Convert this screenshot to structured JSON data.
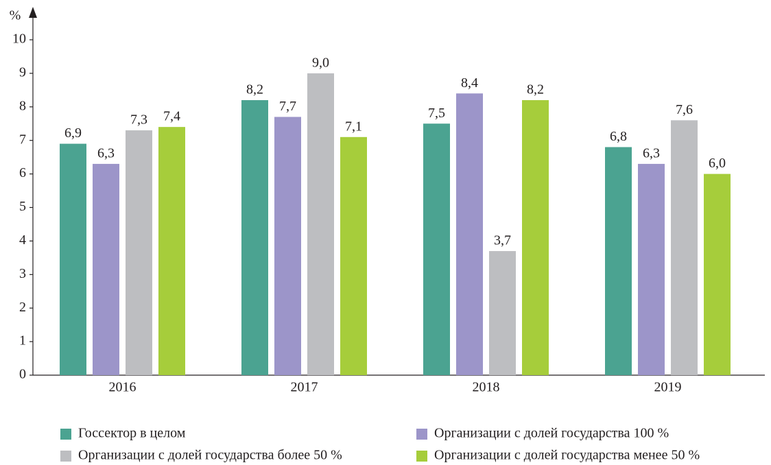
{
  "chart_data": {
    "type": "bar",
    "y_label": "%",
    "categories": [
      "2016",
      "2017",
      "2018",
      "2019"
    ],
    "series": [
      {
        "name": "Госсектор в целом",
        "color": "#4ba391",
        "values": [
          6.9,
          8.2,
          7.5,
          6.8
        ],
        "value_labels": [
          "6,9",
          "8,2",
          "7,5",
          "6,8"
        ]
      },
      {
        "name": "Организации с долей государства 100 %",
        "color": "#9c95c9",
        "values": [
          6.3,
          7.7,
          8.4,
          6.3
        ],
        "value_labels": [
          "6,3",
          "7,7",
          "8,4",
          "6,3"
        ]
      },
      {
        "name": "Организации с долей государства более 50 %",
        "color": "#bdbec1",
        "values": [
          7.3,
          9.0,
          3.7,
          7.6
        ],
        "value_labels": [
          "7,3",
          "9,0",
          "3,7",
          "7,6"
        ]
      },
      {
        "name": "Организации с долей государства менее 50 %",
        "color": "#a6cd3b",
        "values": [
          7.4,
          7.1,
          8.2,
          6.0
        ],
        "value_labels": [
          "7,4",
          "7,1",
          "8,2",
          "6,0"
        ]
      }
    ],
    "ylim": [
      0,
      10
    ],
    "yticks": [
      0,
      1,
      2,
      3,
      4,
      5,
      6,
      7,
      8,
      9,
      10
    ],
    "legend": "bottom"
  }
}
